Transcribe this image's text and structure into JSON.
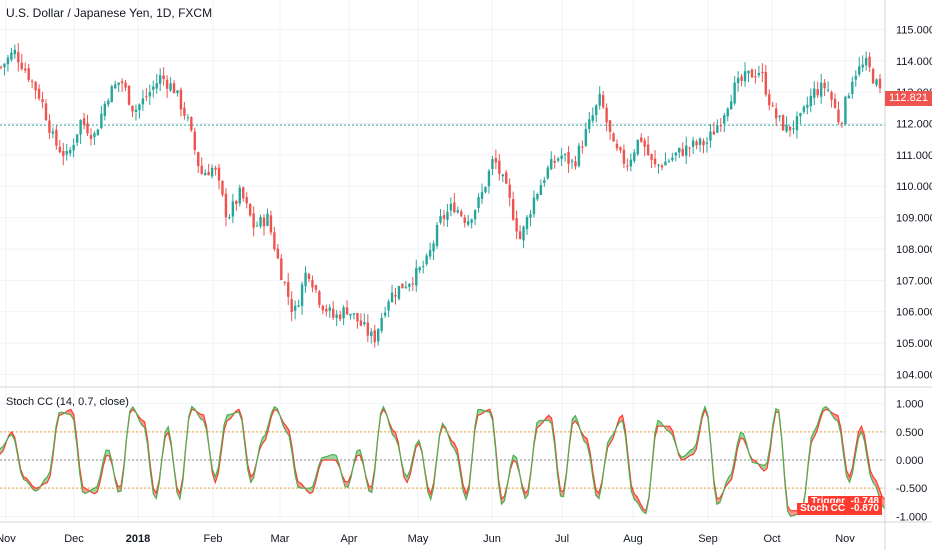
{
  "header": {
    "title": "U.S. Dollar / Japanese Yen, 1D, FXCM"
  },
  "indicator": {
    "title": "Stoch CC (14, 0.7, close)",
    "labels": [
      {
        "name": "Trigger",
        "value": "-0.748"
      },
      {
        "name": "Stoch CC",
        "value": "-0.870"
      }
    ]
  },
  "colors": {
    "up": "#26a69a",
    "down": "#ef5350",
    "green_line": "#4caf50",
    "red_line": "#ff3b30",
    "price_tag": "#ef5350",
    "hline": "#26a69a",
    "level": "#f0a030"
  },
  "chart_data": [
    {
      "type": "candlestick",
      "title": "U.S. Dollar / Japanese Yen, 1D, FXCM",
      "y_ticks": [
        "104.000",
        "105.000",
        "106.000",
        "107.000",
        "108.000",
        "109.000",
        "110.000",
        "111.000",
        "112.000",
        "113.000",
        "114.000",
        "115.000"
      ],
      "ylim": [
        103.6,
        115.3
      ],
      "x_ticks": [
        "Nov",
        "Dec",
        "2018",
        "Feb",
        "Mar",
        "Apr",
        "May",
        "Jun",
        "Jul",
        "Aug",
        "Sep",
        "Oct",
        "Nov"
      ],
      "last_price": "112.821",
      "horizontal_line": 111.95,
      "close_path": [
        113.8,
        114.3,
        113.6,
        112.8,
        111.4,
        110.9,
        112.1,
        111.6,
        112.9,
        113.4,
        112.4,
        112.9,
        113.5,
        113.1,
        112.1,
        110.4,
        110.6,
        109.0,
        109.8,
        108.7,
        109.0,
        107.3,
        105.9,
        107.4,
        106.3,
        105.8,
        106.1,
        105.6,
        105.1,
        106.4,
        106.8,
        107.1,
        107.6,
        108.9,
        109.4,
        108.9,
        109.6,
        110.9,
        109.8,
        108.3,
        109.6,
        110.5,
        111.0,
        110.7,
        111.8,
        112.8,
        111.2,
        110.7,
        111.6,
        110.6,
        110.8,
        111.1,
        111.3,
        111.4,
        112.1,
        113.1,
        113.5,
        113.7,
        112.3,
        111.8,
        112.1,
        113.0,
        113.2,
        112.0,
        113.6,
        113.9,
        113.0
      ]
    },
    {
      "type": "line",
      "title": "Stoch CC (14, 0.7, close)",
      "y_ticks": [
        "-1.000",
        "-0.500",
        "0.000",
        "0.500",
        "1.000"
      ],
      "ylim": [
        -1.1,
        1.1
      ],
      "levels": [
        0.5,
        0.0,
        -0.5
      ],
      "series": [
        {
          "name": "Trigger",
          "last": "-0.748",
          "values": [
            0.1,
            0.5,
            -0.3,
            -0.5,
            -0.4,
            0.8,
            0.9,
            -0.5,
            -0.6,
            0.1,
            -0.5,
            0.9,
            0.7,
            -0.6,
            0.5,
            -0.6,
            0.9,
            0.8,
            -0.4,
            0.7,
            0.9,
            -0.3,
            0.3,
            0.9,
            0.6,
            -0.4,
            -0.6,
            0.0,
            0.0,
            -0.4,
            0.1,
            -0.5,
            0.9,
            0.5,
            -0.4,
            0.3,
            -0.6,
            0.6,
            0.3,
            -0.6,
            0.8,
            0.9,
            -0.7,
            0.0,
            -0.6,
            0.6,
            0.8,
            -0.6,
            0.7,
            0.4,
            -0.6,
            0.3,
            0.8,
            -0.6,
            -0.9,
            0.6,
            0.6,
            0.0,
            0.1,
            0.9,
            -0.7,
            -0.4,
            0.4,
            0.0,
            -0.2,
            0.9,
            -0.9,
            -0.9,
            0.4,
            0.9,
            0.8,
            -0.3,
            0.6,
            -0.3,
            -0.7
          ]
        },
        {
          "name": "Stoch CC",
          "last": "-0.870",
          "values": [
            0.2,
            0.45,
            -0.35,
            -0.55,
            -0.3,
            0.85,
            0.8,
            -0.6,
            -0.5,
            0.2,
            -0.6,
            0.95,
            0.6,
            -0.7,
            0.6,
            -0.7,
            0.95,
            0.7,
            -0.3,
            0.8,
            0.85,
            -0.4,
            0.4,
            0.95,
            0.5,
            -0.5,
            -0.5,
            0.05,
            0.1,
            -0.5,
            0.2,
            -0.6,
            0.95,
            0.4,
            -0.3,
            0.35,
            -0.7,
            0.65,
            0.2,
            -0.7,
            0.9,
            0.85,
            -0.8,
            0.1,
            -0.7,
            0.7,
            0.7,
            -0.7,
            0.8,
            0.3,
            -0.7,
            0.4,
            0.7,
            -0.7,
            -0.95,
            0.7,
            0.5,
            0.05,
            0.2,
            0.95,
            -0.8,
            -0.3,
            0.5,
            -0.05,
            -0.1,
            0.95,
            -1.0,
            -0.95,
            0.5,
            0.95,
            0.7,
            -0.4,
            0.5,
            -0.4,
            -0.87
          ]
        }
      ]
    }
  ]
}
